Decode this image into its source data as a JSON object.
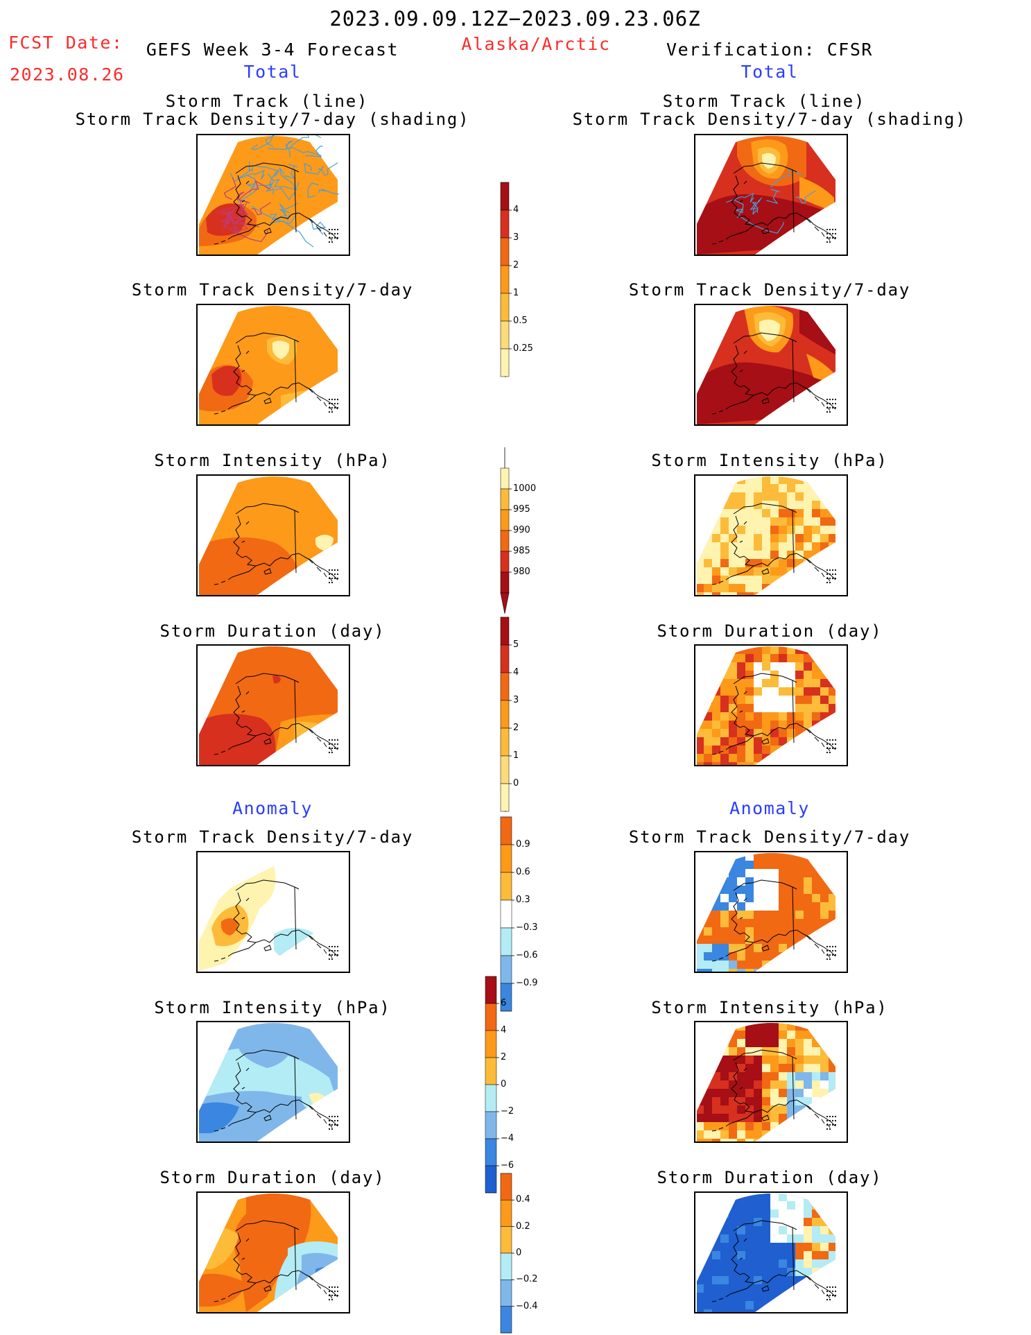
{
  "header": {
    "date_range": "2023.09.09.12Z−2023.09.23.06Z",
    "fcst_label": "FCST Date:",
    "fcst_date": "2023.08.26",
    "forecast_title": "GEFS Week 3-4 Forecast",
    "region": "Alaska/Arctic",
    "verification_title": "Verification: CFSR"
  },
  "sections": {
    "total_left": "Total",
    "total_right": "Total",
    "anomaly_left": "Anomaly",
    "anomaly_right": "Anomaly"
  },
  "panel_titles": {
    "storm_track_line": "Storm Track (line)",
    "storm_track_shading": "Storm Track Density/7-day (shading)",
    "track_density": "Storm Track Density/7-day",
    "intensity": "Storm Intensity (hPa)",
    "duration": "Storm Duration (day)"
  },
  "colorbars": {
    "track_density": [
      "4",
      "3",
      "2",
      "1",
      "0.5",
      "0.25"
    ],
    "intensity": [
      "1000",
      "995",
      "990",
      "985",
      "980"
    ],
    "duration": [
      "5",
      "4",
      "3",
      "2",
      "1",
      "0"
    ],
    "anom_density": [
      "0.9",
      "0.6",
      "0.3",
      "−0.3",
      "−0.6",
      "−0.9"
    ],
    "anom_intensity": [
      "6",
      "4",
      "2",
      "0",
      "−2",
      "−4",
      "−6"
    ],
    "anom_duration": [
      "0.4",
      "0.2",
      "0",
      "−0.2",
      "−0.4"
    ]
  },
  "colors": {
    "dark_red": "#a50f15",
    "red": "#d7301f",
    "red_orange": "#f16913",
    "orange": "#fd9a1a",
    "light_orange": "#fdbb3a",
    "pale_yellow": "#fff3b0",
    "light_blue": "#b3ecf5",
    "mid_blue": "#7fb7ea",
    "blue": "#3a86e0",
    "dark_blue": "#1f5fd0",
    "track_line": "#4a9fd8",
    "text_red": "#ff2a2a",
    "text_blue": "#2a3cff"
  }
}
